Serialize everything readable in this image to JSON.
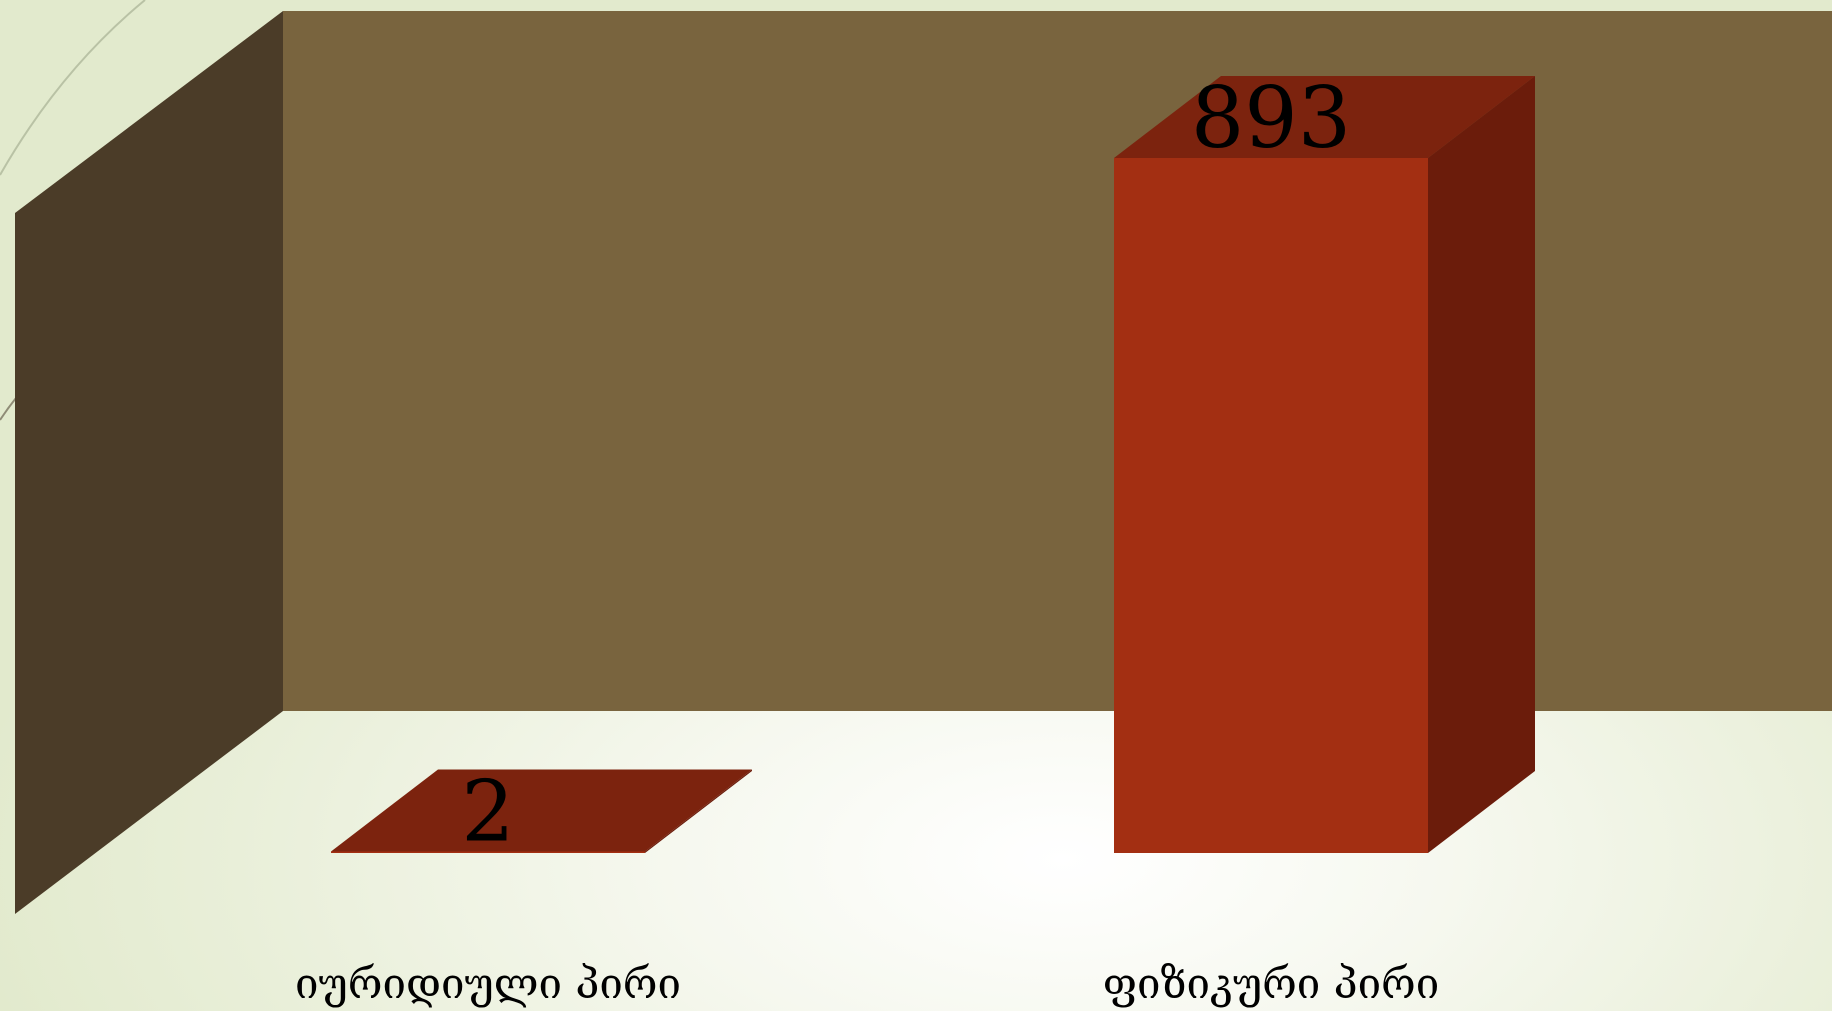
{
  "chart_data": {
    "type": "bar",
    "style": "3d-column",
    "categories": [
      "იურიდიული პირი",
      "ფიზიკური პირი"
    ],
    "values": [
      2,
      893
    ],
    "data_labels": [
      "2",
      "893"
    ],
    "ylim": [
      0,
      893
    ],
    "grid": false,
    "legend": "none",
    "title": "",
    "xlabel": "",
    "ylabel": ""
  },
  "colors": {
    "back_wall": "#79643e",
    "side_wall": "#4b3c28",
    "bar_front": "#a32f12",
    "bar_top": "#7c230e",
    "bar_side": "#6b1c0b",
    "background": "#eef2e2"
  }
}
